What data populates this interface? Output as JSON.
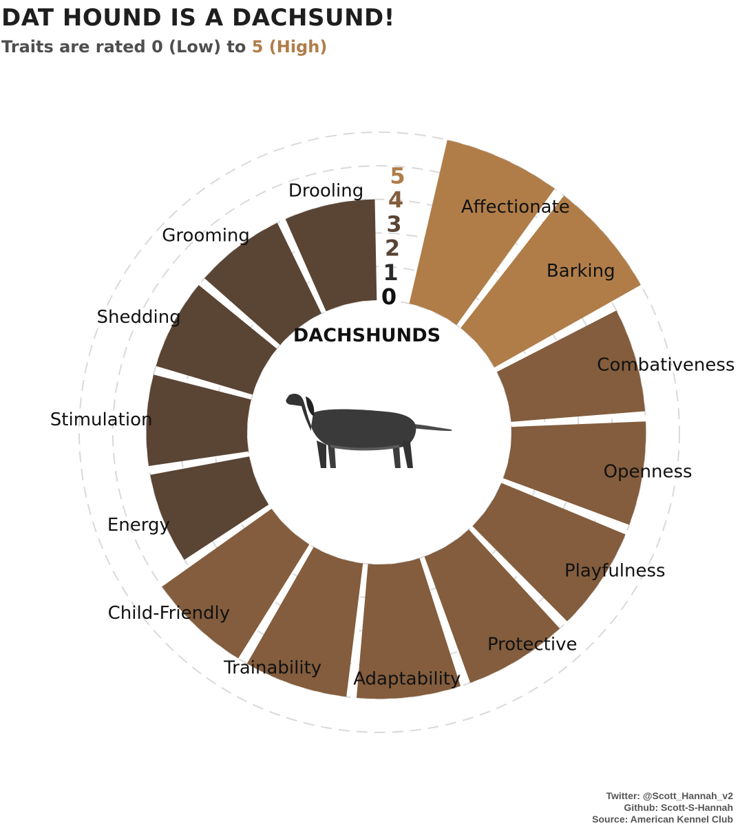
{
  "title": "DAT HOUND IS A DACHSUND!",
  "subtitle": {
    "prefix": "Traits are rated ",
    "low": "0 (Low)",
    "middle": " to ",
    "high": "5 (High)"
  },
  "center_label": "DACHSHUNDS",
  "center_image": "dachshund-illustration",
  "caption": [
    "Twitter: @Scott_Hannah_v2",
    "Github: Scott-S-Hannah",
    "Source: American Kennel Club"
  ],
  "colors": {
    "rating_5": "#b07d49",
    "rating_4": "#835d3d",
    "rating_3": "#5a4434",
    "rating_1": "#2b2b2b",
    "gridline": "#d9d9d9",
    "text": "#111111"
  },
  "chart_data": {
    "type": "bar",
    "coord": "polar",
    "scale_labels": [
      "0",
      "1",
      "2",
      "3",
      "4",
      "5"
    ],
    "ylim": [
      0,
      5
    ],
    "categories": [
      "Affectionate",
      "Barking",
      "Combativeness",
      "Openness",
      "Playfulness",
      "Protective",
      "Adaptability",
      "Trainability",
      "Child-Friendly",
      "Energy",
      "Stimulation",
      "Shedding",
      "Grooming",
      "Drooling"
    ],
    "values": [
      5,
      5,
      4,
      4,
      4,
      4,
      4,
      4,
      4,
      3,
      3,
      3,
      3,
      3
    ]
  }
}
